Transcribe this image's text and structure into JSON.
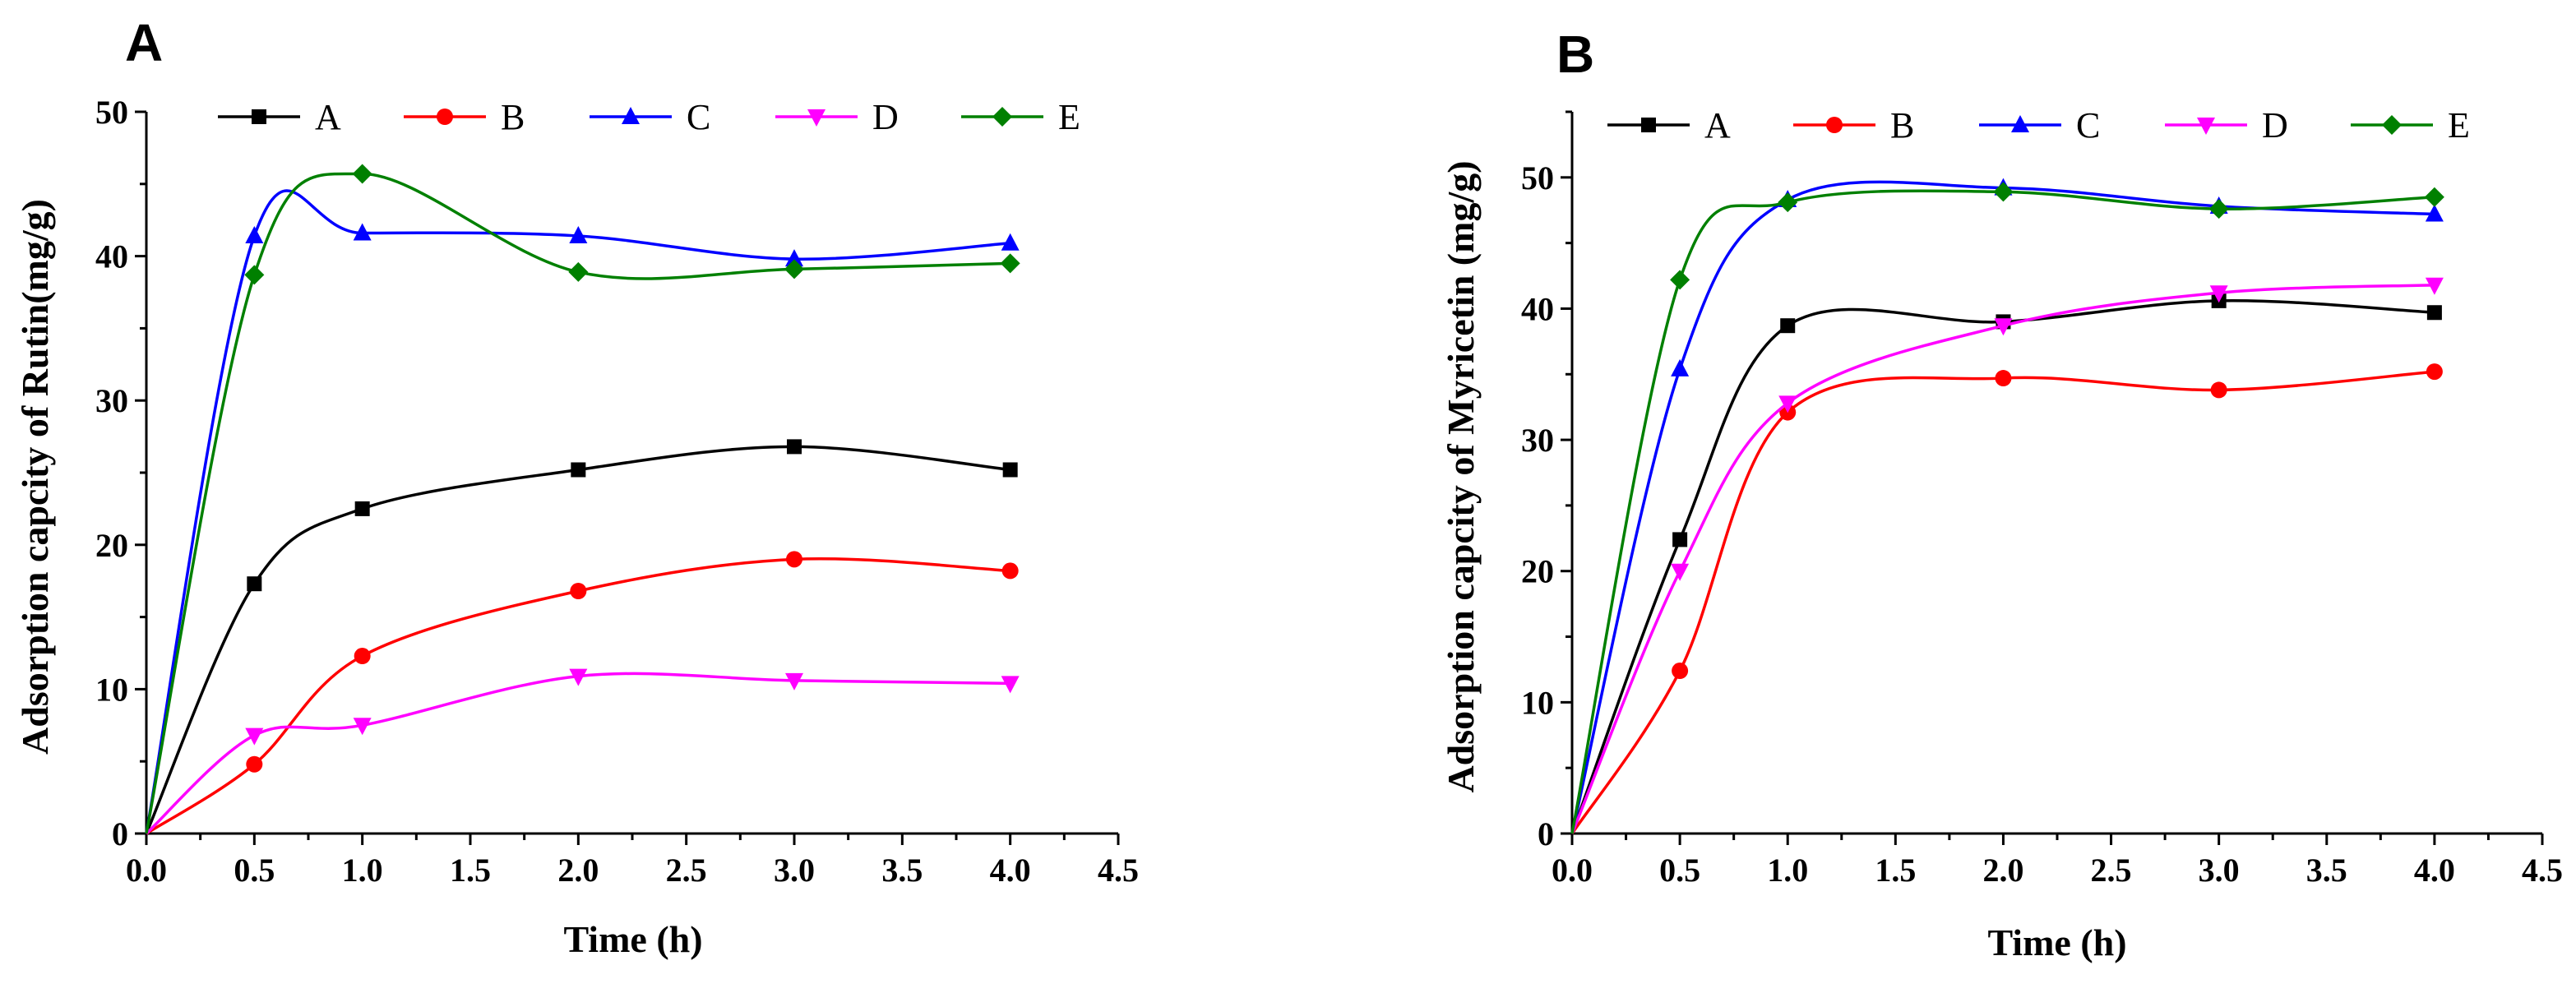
{
  "chart_data": [
    {
      "type": "line",
      "panel_label": "A",
      "xlabel": "Time (h)",
      "ylabel": "Adsorption capcity of Rutin(mg/g)",
      "xlim": [
        0,
        4.5
      ],
      "ylim": [
        0,
        50
      ],
      "xticks": [
        "0.0",
        "0.5",
        "1.0",
        "1.5",
        "2.0",
        "2.5",
        "3.0",
        "3.5",
        "4.0",
        "4.5"
      ],
      "yticks": [
        "0",
        "10",
        "20",
        "30",
        "40",
        "50"
      ],
      "x": [
        0,
        0.5,
        1.0,
        2.0,
        3.0,
        4.0
      ],
      "legend_position": "top",
      "series": [
        {
          "name": "A",
          "color": "#000000",
          "marker": "square",
          "values": [
            0,
            17.3,
            22.5,
            25.2,
            26.8,
            25.2
          ]
        },
        {
          "name": "B",
          "color": "#ff0000",
          "marker": "circle",
          "values": [
            0,
            4.8,
            12.3,
            16.8,
            19.0,
            18.2
          ]
        },
        {
          "name": "C",
          "color": "#0000ff",
          "marker": "triangle-up",
          "values": [
            0,
            41.4,
            41.6,
            41.4,
            39.8,
            40.9
          ]
        },
        {
          "name": "D",
          "color": "#ff00ff",
          "marker": "triangle-down",
          "values": [
            0,
            6.8,
            7.5,
            10.9,
            10.6,
            10.4
          ]
        },
        {
          "name": "E",
          "color": "#008000",
          "marker": "diamond",
          "values": [
            0,
            38.7,
            45.7,
            38.9,
            39.1,
            39.5
          ]
        }
      ]
    },
    {
      "type": "line",
      "panel_label": "B",
      "xlabel": "Time (h)",
      "ylabel": "Adsorption capcity of Myricetin (mg/g)",
      "xlim": [
        0,
        4.5
      ],
      "ylim": [
        0,
        55
      ],
      "xticks": [
        "0.0",
        "0.5",
        "1.0",
        "1.5",
        "2.0",
        "2.5",
        "3.0",
        "3.5",
        "4.0",
        "4.5"
      ],
      "yticks": [
        "0",
        "10",
        "20",
        "30",
        "40",
        "50"
      ],
      "x": [
        0,
        0.5,
        1.0,
        2.0,
        3.0,
        4.0
      ],
      "legend_position": "top",
      "series": [
        {
          "name": "A",
          "color": "#000000",
          "marker": "square",
          "values": [
            0,
            22.4,
            38.7,
            39.0,
            40.6,
            39.7
          ]
        },
        {
          "name": "B",
          "color": "#ff0000",
          "marker": "circle",
          "values": [
            0,
            12.4,
            32.1,
            34.7,
            33.8,
            35.2
          ]
        },
        {
          "name": "C",
          "color": "#0000ff",
          "marker": "triangle-up",
          "values": [
            0,
            35.4,
            48.3,
            49.2,
            47.8,
            47.2
          ]
        },
        {
          "name": "D",
          "color": "#ff00ff",
          "marker": "triangle-down",
          "values": [
            0,
            20.0,
            32.8,
            38.7,
            41.2,
            41.8
          ]
        },
        {
          "name": "E",
          "color": "#008000",
          "marker": "diamond",
          "values": [
            0,
            42.2,
            48.1,
            48.9,
            47.6,
            48.5
          ]
        }
      ]
    }
  ]
}
